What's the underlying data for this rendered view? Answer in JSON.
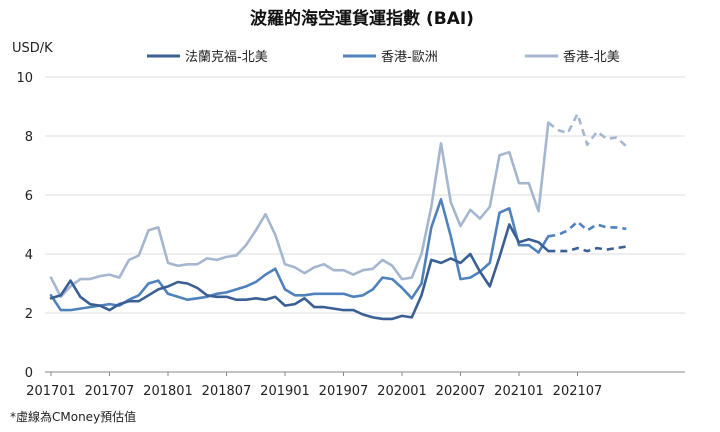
{
  "chart_data": {
    "type": "line",
    "title": "波羅的海空運貨運指數 (BAI)",
    "ylabel": "USD/K",
    "ylim": [
      0,
      10
    ],
    "yticks": [
      0,
      2,
      4,
      6,
      8,
      10
    ],
    "grid": true,
    "legend_position": "top",
    "footnote": "*虛線為CMoney預估值",
    "x_tick_labels": [
      "201701",
      "201707",
      "201801",
      "201807",
      "201901",
      "201907",
      "202001",
      "202007",
      "202101",
      "202107"
    ],
    "x": [
      "201701",
      "201702",
      "201703",
      "201704",
      "201705",
      "201706",
      "201707",
      "201708",
      "201709",
      "201710",
      "201711",
      "201712",
      "201801",
      "201802",
      "201803",
      "201804",
      "201805",
      "201806",
      "201807",
      "201808",
      "201809",
      "201810",
      "201811",
      "201812",
      "201901",
      "201902",
      "201903",
      "201904",
      "201905",
      "201906",
      "201907",
      "201908",
      "201909",
      "201910",
      "201911",
      "201912",
      "202001",
      "202002",
      "202003",
      "202004",
      "202005",
      "202006",
      "202007",
      "202008",
      "202009",
      "202010",
      "202011",
      "202012",
      "202101",
      "202102",
      "202103",
      "202104",
      "202105",
      "202106",
      "202107",
      "202108",
      "202109",
      "202110",
      "202111",
      "202112"
    ],
    "forecast_start": "202104",
    "series": [
      {
        "name": "法蘭克福-北美",
        "color": "#3a5f95",
        "values": [
          2.5,
          2.6,
          3.1,
          2.55,
          2.3,
          2.25,
          2.1,
          2.3,
          2.4,
          2.4,
          2.6,
          2.8,
          2.9,
          3.05,
          3.0,
          2.85,
          2.6,
          2.55,
          2.55,
          2.45,
          2.45,
          2.5,
          2.45,
          2.55,
          2.25,
          2.3,
          2.5,
          2.2,
          2.2,
          2.15,
          2.1,
          2.1,
          1.95,
          1.85,
          1.8,
          1.8,
          1.9,
          1.85,
          2.6,
          3.8,
          3.7,
          3.85,
          3.7,
          4.0,
          3.4,
          2.9,
          3.9,
          5.0,
          4.4,
          4.5,
          4.4,
          4.1,
          4.1,
          4.1,
          4.2,
          4.1,
          4.2,
          4.15,
          4.2,
          4.25
        ]
      },
      {
        "name": "香港-歐洲",
        "color": "#4f81bd",
        "values": [
          2.6,
          2.1,
          2.1,
          2.15,
          2.2,
          2.25,
          2.3,
          2.25,
          2.45,
          2.6,
          3.0,
          3.1,
          2.65,
          2.55,
          2.45,
          2.5,
          2.55,
          2.65,
          2.7,
          2.8,
          2.9,
          3.05,
          3.3,
          3.5,
          2.8,
          2.6,
          2.6,
          2.65,
          2.65,
          2.65,
          2.65,
          2.55,
          2.6,
          2.8,
          3.2,
          3.15,
          2.85,
          2.5,
          3.0,
          4.9,
          5.85,
          4.6,
          3.15,
          3.2,
          3.4,
          3.7,
          5.4,
          5.55,
          4.3,
          4.3,
          4.05,
          4.6,
          4.65,
          4.8,
          5.1,
          4.8,
          5.0,
          4.9,
          4.9,
          4.85
        ]
      },
      {
        "name": "香港-北美",
        "color": "#a5b6cf",
        "values": [
          3.2,
          2.55,
          2.9,
          3.15,
          3.15,
          3.25,
          3.3,
          3.2,
          3.8,
          3.95,
          4.8,
          4.9,
          3.7,
          3.6,
          3.65,
          3.65,
          3.85,
          3.8,
          3.9,
          3.95,
          4.3,
          4.8,
          5.35,
          4.65,
          3.65,
          3.55,
          3.35,
          3.55,
          3.65,
          3.45,
          3.45,
          3.3,
          3.45,
          3.5,
          3.8,
          3.6,
          3.15,
          3.2,
          4.0,
          5.6,
          7.75,
          5.75,
          4.95,
          5.5,
          5.2,
          5.6,
          7.35,
          7.45,
          6.4,
          6.4,
          5.45,
          8.45,
          8.2,
          8.1,
          8.75,
          7.7,
          8.15,
          7.9,
          7.95,
          7.65
        ]
      }
    ]
  }
}
